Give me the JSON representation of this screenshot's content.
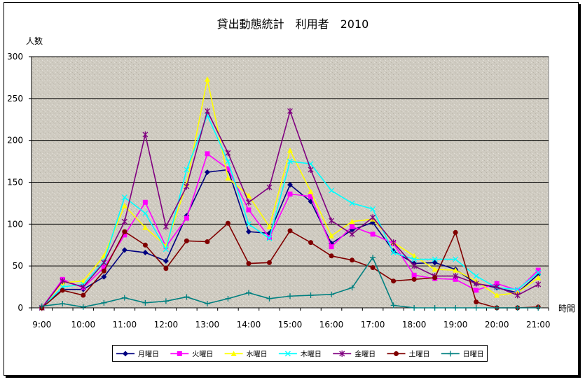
{
  "chart_data": {
    "type": "line",
    "title": "貸出動態統計　利用者　2010",
    "ylabel": "人数",
    "xlabel": "時間",
    "ylim": [
      0,
      300
    ],
    "yticks": [
      0,
      50,
      100,
      150,
      200,
      250,
      300
    ],
    "x": [
      9,
      9.5,
      10,
      10.5,
      11,
      11.5,
      12,
      12.5,
      13,
      13.5,
      14,
      14.5,
      15,
      15.5,
      16,
      16.5,
      17,
      17.5,
      18,
      18.5,
      19,
      19.5,
      20,
      20.5,
      21
    ],
    "xticks": [
      "9:00",
      "10:00",
      "11:00",
      "12:00",
      "13:00",
      "14:00",
      "15:00",
      "16:00",
      "17:00",
      "18:00",
      "19:00",
      "20:00",
      "21:00"
    ],
    "grid": true,
    "legend": "bottom",
    "series": [
      {
        "name": "月曜日",
        "color": "#000080",
        "marker": "diamond",
        "values": [
          0,
          22,
          22,
          37,
          69,
          66,
          56,
          110,
          162,
          165,
          91,
          89,
          147,
          127,
          77,
          93,
          102,
          68,
          53,
          54,
          46,
          29,
          24,
          18,
          40
        ]
      },
      {
        "name": "火曜日",
        "color": "#FF00FF",
        "marker": "square",
        "values": [
          0,
          34,
          24,
          48,
          87,
          126,
          73,
          107,
          184,
          166,
          117,
          84,
          136,
          133,
          73,
          97,
          88,
          77,
          39,
          35,
          34,
          21,
          29,
          21,
          45
        ]
      },
      {
        "name": "水曜日",
        "color": "#FFFF00",
        "marker": "triangle",
        "values": [
          0,
          30,
          32,
          62,
          122,
          96,
          74,
          148,
          273,
          155,
          134,
          97,
          188,
          139,
          86,
          103,
          106,
          78,
          62,
          46,
          45,
          32,
          15,
          18,
          36
        ]
      },
      {
        "name": "木曜日",
        "color": "#00FFFF",
        "marker": "x",
        "values": [
          0,
          25,
          28,
          55,
          132,
          113,
          70,
          165,
          230,
          175,
          100,
          83,
          175,
          172,
          140,
          125,
          118,
          66,
          58,
          58,
          58,
          38,
          24,
          22,
          42
        ]
      },
      {
        "name": "金曜日",
        "color": "#800080",
        "marker": "asterisk",
        "values": [
          0,
          32,
          25,
          54,
          103,
          207,
          97,
          145,
          235,
          185,
          126,
          144,
          235,
          165,
          104,
          88,
          108,
          78,
          50,
          38,
          38,
          29,
          25,
          15,
          28
        ]
      },
      {
        "name": "土曜日",
        "color": "#800000",
        "marker": "circle",
        "values": [
          0,
          21,
          15,
          44,
          91,
          75,
          47,
          80,
          79,
          101,
          53,
          54,
          92,
          78,
          62,
          57,
          48,
          32,
          34,
          36,
          90,
          7,
          0,
          0,
          1
        ]
      },
      {
        "name": "日曜日",
        "color": "#008080",
        "marker": "plus",
        "values": [
          2,
          5,
          1,
          6,
          12,
          6,
          8,
          13,
          5,
          11,
          18,
          11,
          14,
          15,
          16,
          24,
          60,
          3,
          0,
          0,
          0,
          0,
          0,
          0,
          0
        ]
      }
    ]
  }
}
